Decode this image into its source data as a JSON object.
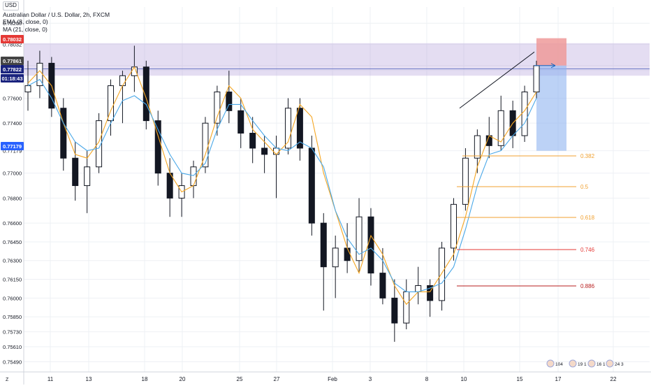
{
  "header": {
    "currency": "USD",
    "title": "Australian Dollar / U.S. Dollar, 2h, FXCM",
    "indicators": [
      "EMA (8, close, 0)",
      "MA (21, close, 0)"
    ]
  },
  "price_axis": {
    "ticks": [
      "0.78200",
      "0.78032",
      "0.77861",
      "0.77822",
      "0.77600",
      "0.77400",
      "0.77179",
      "0.77000",
      "0.76800",
      "0.76600",
      "0.76450",
      "0.76300",
      "0.76150",
      "0.76000",
      "0.75850",
      "0.75730",
      "0.75610",
      "0.75490"
    ],
    "badges": [
      {
        "label": "0.78032",
        "color": "#e53935"
      },
      {
        "label": "0.77861",
        "color": "#444444"
      },
      {
        "label": "0.77822",
        "color": "#1a237e"
      },
      {
        "label": "01:18:43",
        "color": "#1a237e"
      },
      {
        "label": "0.77179",
        "color": "#2962ff"
      }
    ]
  },
  "time_axis": {
    "ticks": [
      "11",
      "13",
      "18",
      "20",
      "25",
      "27",
      "Feb",
      "3",
      "8",
      "10",
      "15",
      "17",
      "22"
    ],
    "corner_label": "Z"
  },
  "fib_levels": [
    {
      "label": "0.382",
      "color": "#f0a030"
    },
    {
      "label": "0.5",
      "color": "#f0a030"
    },
    {
      "label": "0.618",
      "color": "#f0a030"
    },
    {
      "label": "0.746",
      "color": "#e53935"
    },
    {
      "label": "0.886",
      "color": "#b71c1c"
    }
  ],
  "event_icons": [
    "104",
    "19 1 5",
    "16 1 3",
    "24 3"
  ],
  "colors": {
    "ema": "#f5a623",
    "ma": "#4aa8e8",
    "candle": "#131722",
    "resistance_zone": "#b39ddb",
    "stop_zone": "#ef9a9a",
    "target_zone": "#90b4f0"
  },
  "chart_data": {
    "type": "candlestick",
    "title": "Australian Dollar / U.S. Dollar, 2h, FXCM",
    "ylim": [
      0.7542,
      0.7833
    ],
    "series": [
      {
        "name": "EMA (8, close, 0)",
        "values": [
          0.7772,
          0.7782,
          0.777,
          0.774,
          0.7715,
          0.7712,
          0.7725,
          0.775,
          0.777,
          0.7785,
          0.776,
          0.773,
          0.77,
          0.7685,
          0.769,
          0.7715,
          0.7745,
          0.777,
          0.776,
          0.7735,
          0.7725,
          0.7715,
          0.7725,
          0.7755,
          0.7745,
          0.77,
          0.767,
          0.764,
          0.762,
          0.765,
          0.7635,
          0.761,
          0.7595,
          0.7605,
          0.7605,
          0.762,
          0.7635,
          0.7665,
          0.7705,
          0.773,
          0.7725,
          0.774,
          0.775,
          0.7765
        ]
      },
      {
        "name": "MA (21, close, 0)",
        "values": [
          0.777,
          0.7775,
          0.776,
          0.774,
          0.7725,
          0.7718,
          0.772,
          0.774,
          0.7758,
          0.7762,
          0.7755,
          0.7735,
          0.7715,
          0.77,
          0.7698,
          0.7708,
          0.7735,
          0.7755,
          0.7755,
          0.7742,
          0.773,
          0.772,
          0.7718,
          0.7725,
          0.772,
          0.7705,
          0.767,
          0.7648,
          0.7635,
          0.764,
          0.763,
          0.7612,
          0.7605,
          0.7605,
          0.7608,
          0.7612,
          0.7625,
          0.7655,
          0.769,
          0.7715,
          0.7718,
          0.773,
          0.774,
          0.776
        ]
      }
    ],
    "candles": [
      {
        "o": 0.7765,
        "h": 0.779,
        "l": 0.775,
        "c": 0.777
      },
      {
        "o": 0.777,
        "h": 0.7798,
        "l": 0.776,
        "c": 0.7788
      },
      {
        "o": 0.7788,
        "h": 0.7793,
        "l": 0.7745,
        "c": 0.7752
      },
      {
        "o": 0.7752,
        "h": 0.776,
        "l": 0.7702,
        "c": 0.7712
      },
      {
        "o": 0.7712,
        "h": 0.7725,
        "l": 0.7678,
        "c": 0.769
      },
      {
        "o": 0.769,
        "h": 0.7718,
        "l": 0.7668,
        "c": 0.7705
      },
      {
        "o": 0.7705,
        "h": 0.7748,
        "l": 0.77,
        "c": 0.7742
      },
      {
        "o": 0.7742,
        "h": 0.7775,
        "l": 0.773,
        "c": 0.777
      },
      {
        "o": 0.777,
        "h": 0.7782,
        "l": 0.774,
        "c": 0.7778
      },
      {
        "o": 0.7778,
        "h": 0.7802,
        "l": 0.7765,
        "c": 0.7785
      },
      {
        "o": 0.7785,
        "h": 0.779,
        "l": 0.7735,
        "c": 0.7742
      },
      {
        "o": 0.7742,
        "h": 0.775,
        "l": 0.769,
        "c": 0.77
      },
      {
        "o": 0.77,
        "h": 0.7712,
        "l": 0.7665,
        "c": 0.768
      },
      {
        "o": 0.768,
        "h": 0.77,
        "l": 0.7665,
        "c": 0.769
      },
      {
        "o": 0.769,
        "h": 0.771,
        "l": 0.768,
        "c": 0.7705
      },
      {
        "o": 0.7705,
        "h": 0.7745,
        "l": 0.77,
        "c": 0.774
      },
      {
        "o": 0.774,
        "h": 0.777,
        "l": 0.773,
        "c": 0.7765
      },
      {
        "o": 0.7765,
        "h": 0.7782,
        "l": 0.774,
        "c": 0.775
      },
      {
        "o": 0.775,
        "h": 0.776,
        "l": 0.772,
        "c": 0.7732
      },
      {
        "o": 0.7732,
        "h": 0.7745,
        "l": 0.7708,
        "c": 0.772
      },
      {
        "o": 0.772,
        "h": 0.773,
        "l": 0.77,
        "c": 0.7715
      },
      {
        "o": 0.7715,
        "h": 0.773,
        "l": 0.768,
        "c": 0.772
      },
      {
        "o": 0.772,
        "h": 0.776,
        "l": 0.7715,
        "c": 0.7752
      },
      {
        "o": 0.7752,
        "h": 0.776,
        "l": 0.771,
        "c": 0.772
      },
      {
        "o": 0.772,
        "h": 0.773,
        "l": 0.765,
        "c": 0.766
      },
      {
        "o": 0.766,
        "h": 0.7668,
        "l": 0.759,
        "c": 0.7625
      },
      {
        "o": 0.7625,
        "h": 0.765,
        "l": 0.76,
        "c": 0.764
      },
      {
        "o": 0.764,
        "h": 0.766,
        "l": 0.762,
        "c": 0.763
      },
      {
        "o": 0.763,
        "h": 0.768,
        "l": 0.762,
        "c": 0.7665
      },
      {
        "o": 0.7665,
        "h": 0.7672,
        "l": 0.761,
        "c": 0.762
      },
      {
        "o": 0.762,
        "h": 0.764,
        "l": 0.7595,
        "c": 0.76
      },
      {
        "o": 0.76,
        "h": 0.7615,
        "l": 0.7565,
        "c": 0.758
      },
      {
        "o": 0.758,
        "h": 0.7615,
        "l": 0.7575,
        "c": 0.7605
      },
      {
        "o": 0.7605,
        "h": 0.7625,
        "l": 0.7595,
        "c": 0.761
      },
      {
        "o": 0.761,
        "h": 0.7615,
        "l": 0.7585,
        "c": 0.7598
      },
      {
        "o": 0.7598,
        "h": 0.7645,
        "l": 0.759,
        "c": 0.764
      },
      {
        "o": 0.764,
        "h": 0.768,
        "l": 0.763,
        "c": 0.7675
      },
      {
        "o": 0.7675,
        "h": 0.772,
        "l": 0.767,
        "c": 0.7712
      },
      {
        "o": 0.7712,
        "h": 0.7735,
        "l": 0.77,
        "c": 0.773
      },
      {
        "o": 0.773,
        "h": 0.7745,
        "l": 0.7712,
        "c": 0.7722
      },
      {
        "o": 0.7722,
        "h": 0.7762,
        "l": 0.7718,
        "c": 0.775
      },
      {
        "o": 0.775,
        "h": 0.7758,
        "l": 0.772,
        "c": 0.773
      },
      {
        "o": 0.773,
        "h": 0.777,
        "l": 0.7725,
        "c": 0.7765
      },
      {
        "o": 0.7765,
        "h": 0.779,
        "l": 0.776,
        "c": 0.7786
      }
    ]
  }
}
